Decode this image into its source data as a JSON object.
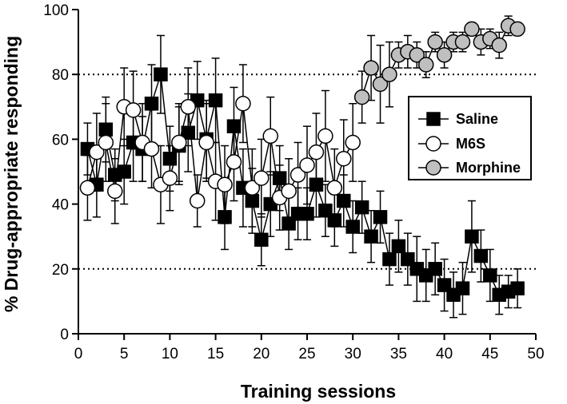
{
  "chart_data": {
    "type": "scatter",
    "title": "",
    "xlabel": "Training sessions",
    "ylabel": "% Drug-appropriate responding",
    "xlim": [
      0,
      50
    ],
    "ylim": [
      0,
      100
    ],
    "xticks": [
      0,
      5,
      10,
      15,
      20,
      25,
      30,
      35,
      40,
      45,
      50
    ],
    "yticks": [
      0,
      20,
      40,
      60,
      80,
      100
    ],
    "reference_lines": [
      20,
      80
    ],
    "grid": false,
    "legend_position": "right",
    "series": [
      {
        "name": "Saline",
        "marker": "square",
        "fill": "#000000",
        "x": [
          1,
          2,
          3,
          4,
          5,
          6,
          7,
          8,
          9,
          10,
          11,
          12,
          13,
          14,
          15,
          16,
          17,
          18,
          19,
          20,
          21,
          22,
          23,
          24,
          25,
          26,
          27,
          28,
          29,
          30,
          31,
          32,
          33,
          34,
          35,
          36,
          37,
          38,
          39,
          40,
          41,
          42,
          43,
          44,
          45,
          46,
          47,
          48
        ],
        "y": [
          57,
          46,
          63,
          49,
          50,
          59,
          57,
          71,
          80,
          54,
          58,
          62,
          72,
          60,
          72,
          36,
          64,
          45,
          41,
          29,
          40,
          48,
          34,
          37,
          37,
          46,
          38,
          35,
          41,
          33,
          39,
          30,
          36,
          23,
          27,
          23,
          20,
          18,
          20,
          15,
          12,
          14,
          30,
          24,
          18,
          12,
          13,
          14
        ],
        "err": [
          8,
          10,
          10,
          8,
          10,
          12,
          10,
          12,
          12,
          10,
          12,
          12,
          12,
          12,
          13,
          10,
          12,
          12,
          10,
          8,
          10,
          10,
          8,
          8,
          8,
          10,
          8,
          8,
          8,
          8,
          8,
          8,
          8,
          8,
          8,
          8,
          10,
          8,
          8,
          8,
          7,
          8,
          11,
          8,
          8,
          6,
          5,
          6
        ]
      },
      {
        "name": "M6S",
        "marker": "circle",
        "fill": "#ffffff",
        "x": [
          1,
          2,
          3,
          4,
          5,
          6,
          7,
          8,
          9,
          10,
          11,
          12,
          13,
          14,
          15,
          16,
          17,
          18,
          19,
          20,
          21,
          22,
          23,
          24,
          25,
          26,
          27,
          28,
          29,
          30
        ],
        "y": [
          45,
          56,
          59,
          44,
          70,
          69,
          59,
          57,
          46,
          48,
          59,
          70,
          41,
          59,
          47,
          46,
          53,
          71,
          45,
          48,
          61,
          42,
          44,
          49,
          52,
          56,
          61,
          45,
          54,
          59
        ],
        "err": [
          10,
          12,
          12,
          10,
          12,
          12,
          12,
          12,
          12,
          10,
          12,
          12,
          8,
          12,
          12,
          12,
          12,
          12,
          12,
          12,
          12,
          10,
          10,
          10,
          12,
          12,
          14,
          12,
          12,
          12
        ]
      },
      {
        "name": "Morphine",
        "marker": "circle",
        "fill": "#bfbfbf",
        "x": [
          31,
          32,
          33,
          34,
          35,
          36,
          37,
          38,
          39,
          40,
          41,
          42,
          43,
          44,
          45,
          46,
          47,
          48
        ],
        "y": [
          73,
          82,
          77,
          80,
          86,
          87,
          86,
          83,
          90,
          86,
          90,
          90,
          94,
          90,
          91,
          89,
          95,
          94
        ],
        "err": [
          8,
          10,
          12,
          10,
          4,
          5,
          4,
          4,
          3,
          4,
          3,
          3,
          2,
          4,
          3,
          4,
          3,
          2
        ]
      }
    ]
  }
}
